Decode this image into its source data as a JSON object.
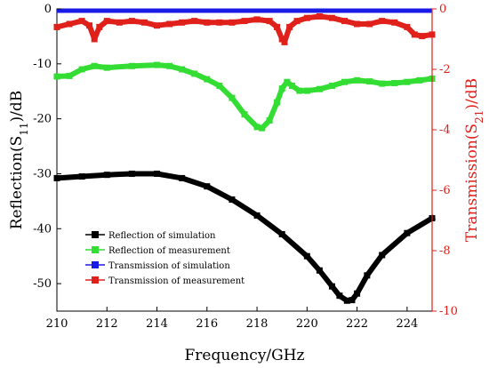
{
  "chart_data": {
    "type": "line",
    "xlabel": "Frequency/GHz",
    "ylabel": "Reflection(S11)/dB",
    "ylabel_parts": {
      "pre": "Reflection(S",
      "sub": "11",
      "post": ")/dB"
    },
    "y2label": "Transmission(S21)/dB",
    "y2label_parts": {
      "pre": "Transmission(S",
      "sub": "21",
      "post": ")/dB"
    },
    "xlim": [
      210,
      225
    ],
    "ylim": [
      -55,
      0
    ],
    "y2lim": [
      -10,
      0
    ],
    "x_ticks": [
      210,
      212,
      214,
      216,
      218,
      220,
      222,
      224
    ],
    "y_ticks": [
      0,
      -10,
      -20,
      -30,
      -40,
      -50
    ],
    "y2_ticks": [
      0,
      -2,
      -4,
      -6,
      -8,
      -10
    ],
    "legend_position": "lower-left",
    "series": [
      {
        "name": "Reflection of simulation",
        "axis": "left",
        "color": "#000000",
        "x": [
          210,
          211,
          212,
          213,
          214,
          215,
          216,
          217,
          218,
          219,
          220,
          220.5,
          221,
          221.3,
          221.6,
          221.8,
          222,
          222.4,
          223,
          224,
          225
        ],
        "y": [
          -30.8,
          -30.5,
          -30.2,
          -30.0,
          -30.0,
          -30.8,
          -32.3,
          -34.7,
          -37.6,
          -41.0,
          -45.0,
          -47.6,
          -50.5,
          -52.2,
          -53.1,
          -53.0,
          -51.8,
          -48.5,
          -44.8,
          -40.8,
          -38.1
        ]
      },
      {
        "name": "Reflection of measurement",
        "axis": "left",
        "color": "#33dd33",
        "x": [
          210,
          210.5,
          211,
          211.5,
          212,
          213,
          214,
          214.5,
          215,
          215.5,
          216,
          216.5,
          217,
          217.5,
          218,
          218.2,
          218.5,
          218.8,
          219,
          219.2,
          219.4,
          219.7,
          220,
          220.5,
          221,
          221.5,
          222,
          222.5,
          223,
          223.5,
          224,
          224.5,
          225
        ],
        "y": [
          -12.3,
          -12.2,
          -11.0,
          -10.4,
          -10.7,
          -10.4,
          -10.2,
          -10.4,
          -11.0,
          -11.8,
          -12.8,
          -14.0,
          -16.2,
          -19.2,
          -21.5,
          -21.7,
          -20.3,
          -17.0,
          -14.5,
          -13.3,
          -14.0,
          -14.9,
          -14.9,
          -14.6,
          -14.0,
          -13.3,
          -13.0,
          -13.2,
          -13.6,
          -13.5,
          -13.3,
          -13.0,
          -12.7
        ]
      },
      {
        "name": "Transmission of simulation",
        "axis": "right",
        "color": "#1a1ae6",
        "x": [
          210,
          225
        ],
        "y": [
          0,
          0
        ]
      },
      {
        "name": "Transmission of measurement",
        "axis": "right",
        "color": "#e0201b",
        "x": [
          210,
          210.5,
          211,
          211.3,
          211.5,
          211.7,
          212,
          212.5,
          213,
          213.5,
          214,
          214.5,
          215,
          215.5,
          216,
          216.5,
          217,
          217.5,
          218,
          218.5,
          218.8,
          219,
          219.1,
          219.3,
          219.6,
          220,
          220.5,
          221,
          221.5,
          222,
          222.5,
          223,
          223.5,
          224,
          224.3,
          224.6,
          225
        ],
        "y": [
          -0.6,
          -0.5,
          -0.4,
          -0.55,
          -1.0,
          -0.6,
          -0.4,
          -0.45,
          -0.4,
          -0.45,
          -0.55,
          -0.5,
          -0.45,
          -0.4,
          -0.45,
          -0.45,
          -0.45,
          -0.4,
          -0.35,
          -0.4,
          -0.6,
          -1.0,
          -1.1,
          -0.6,
          -0.4,
          -0.3,
          -0.25,
          -0.3,
          -0.4,
          -0.5,
          -0.5,
          -0.4,
          -0.45,
          -0.6,
          -0.85,
          -0.9,
          -0.85
        ]
      }
    ]
  }
}
